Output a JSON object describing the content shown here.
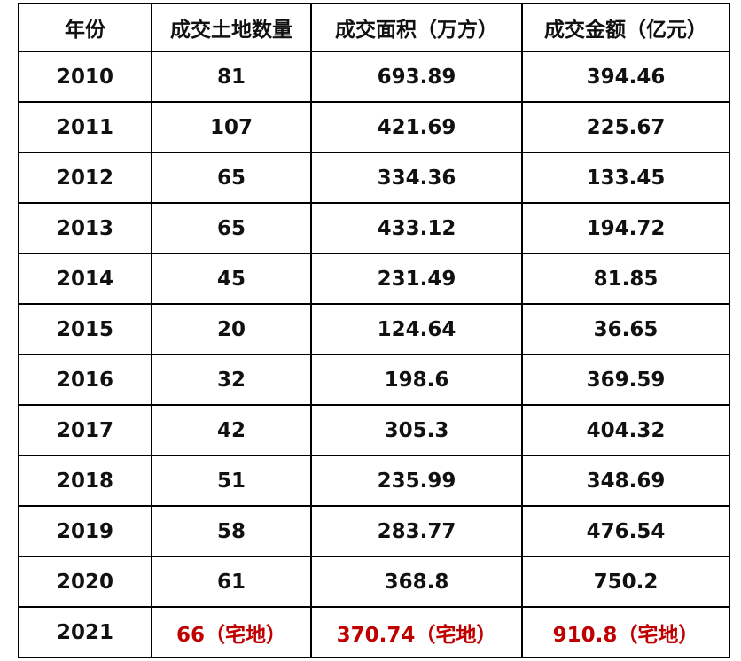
{
  "table": {
    "header": [
      "年份",
      "成交土地数量",
      "成交面积（万方）",
      "成交金额（亿元）"
    ],
    "rows": [
      [
        "2010",
        "81",
        "693.89",
        "394.46"
      ],
      [
        "2011",
        "107",
        "421.69",
        "225.67"
      ],
      [
        "2012",
        "65",
        "334.36",
        "133.45"
      ],
      [
        "2013",
        "65",
        "433.12",
        "194.72"
      ],
      [
        "2014",
        "45",
        "231.49",
        "81.85"
      ],
      [
        "2015",
        "20",
        "124.64",
        "36.65"
      ],
      [
        "2016",
        "32",
        "198.6",
        "369.59"
      ],
      [
        "2017",
        "42",
        "305.3",
        "404.32"
      ],
      [
        "2018",
        "51",
        "235.99",
        "348.69"
      ],
      [
        "2019",
        "58",
        "283.77",
        "476.54"
      ],
      [
        "2020",
        "61",
        "368.8",
        "750.2"
      ],
      [
        "2021",
        "66（宅地）",
        "370.74（宅地）",
        "910.8（宅地）"
      ]
    ]
  }
}
